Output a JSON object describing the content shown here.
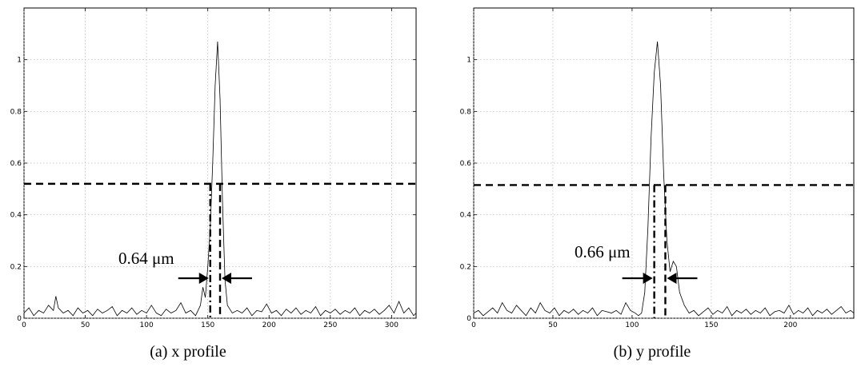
{
  "chart_data": [
    {
      "type": "line",
      "caption": "(a) x profile",
      "xlim": [
        0,
        320
      ],
      "ylim": [
        0,
        1.2
      ],
      "xticks": [
        0,
        50,
        100,
        150,
        200,
        250,
        300
      ],
      "yticks": [
        0,
        0.2,
        0.4,
        0.6,
        0.8,
        1
      ],
      "grid": true,
      "half_max_level": 0.52,
      "fwhm_x": [
        152,
        160
      ],
      "annotation": "0.64 μm",
      "series": [
        {
          "x": [
            0,
            4,
            8,
            12,
            16,
            20,
            24,
            26,
            28,
            32,
            36,
            40,
            44,
            48,
            52,
            56,
            60,
            64,
            68,
            72,
            76,
            80,
            84,
            88,
            92,
            96,
            100,
            104,
            108,
            112,
            116,
            120,
            124,
            128,
            132,
            136,
            140,
            144,
            146,
            148,
            150,
            152,
            154,
            156,
            158,
            160,
            162,
            164,
            166,
            170,
            174,
            178,
            182,
            186,
            190,
            194,
            198,
            202,
            206,
            210,
            214,
            218,
            222,
            226,
            230,
            234,
            238,
            242,
            246,
            250,
            254,
            258,
            262,
            266,
            270,
            274,
            278,
            282,
            286,
            290,
            294,
            298,
            302,
            306,
            310,
            314,
            318,
            320
          ],
          "y": [
            0.02,
            0.04,
            0.01,
            0.03,
            0.02,
            0.05,
            0.03,
            0.085,
            0.04,
            0.02,
            0.03,
            0.01,
            0.04,
            0.02,
            0.03,
            0.01,
            0.035,
            0.02,
            0.03,
            0.045,
            0.01,
            0.03,
            0.02,
            0.04,
            0.015,
            0.03,
            0.02,
            0.05,
            0.02,
            0.01,
            0.035,
            0.02,
            0.03,
            0.06,
            0.02,
            0.03,
            0.01,
            0.05,
            0.12,
            0.08,
            0.2,
            0.35,
            0.6,
            0.9,
            1.07,
            0.85,
            0.45,
            0.15,
            0.05,
            0.02,
            0.03,
            0.02,
            0.04,
            0.01,
            0.03,
            0.025,
            0.055,
            0.02,
            0.03,
            0.01,
            0.035,
            0.02,
            0.04,
            0.015,
            0.03,
            0.02,
            0.045,
            0.01,
            0.03,
            0.02,
            0.035,
            0.015,
            0.03,
            0.02,
            0.04,
            0.01,
            0.03,
            0.02,
            0.035,
            0.015,
            0.03,
            0.05,
            0.02,
            0.065,
            0.02,
            0.04,
            0.01,
            0.02
          ]
        }
      ]
    },
    {
      "type": "line",
      "caption": "(b) y profile",
      "xlim": [
        0,
        240
      ],
      "ylim": [
        0,
        1.2
      ],
      "xticks": [
        0,
        50,
        100,
        150,
        200
      ],
      "yticks": [
        0,
        0.2,
        0.4,
        0.6,
        0.8,
        1
      ],
      "grid": true,
      "half_max_level": 0.515,
      "fwhm_x": [
        114,
        121
      ],
      "annotation": "0.66 μm",
      "series": [
        {
          "x": [
            0,
            3,
            6,
            9,
            12,
            15,
            18,
            21,
            24,
            27,
            30,
            33,
            36,
            39,
            42,
            45,
            48,
            51,
            54,
            57,
            60,
            63,
            66,
            69,
            72,
            75,
            78,
            81,
            84,
            87,
            90,
            93,
            96,
            99,
            102,
            104,
            106,
            108,
            110,
            112,
            114,
            116,
            118,
            120,
            122,
            124,
            126,
            128,
            130,
            133,
            136,
            139,
            142,
            145,
            148,
            151,
            154,
            157,
            160,
            163,
            166,
            169,
            172,
            175,
            178,
            181,
            184,
            187,
            190,
            193,
            196,
            199,
            202,
            205,
            208,
            211,
            214,
            217,
            220,
            223,
            226,
            229,
            232,
            235,
            238,
            240
          ],
          "y": [
            0.02,
            0.03,
            0.01,
            0.025,
            0.04,
            0.02,
            0.06,
            0.03,
            0.02,
            0.05,
            0.03,
            0.01,
            0.04,
            0.02,
            0.06,
            0.03,
            0.02,
            0.04,
            0.01,
            0.03,
            0.02,
            0.035,
            0.015,
            0.03,
            0.02,
            0.04,
            0.01,
            0.03,
            0.025,
            0.02,
            0.03,
            0.015,
            0.06,
            0.03,
            0.02,
            0.01,
            0.02,
            0.1,
            0.35,
            0.7,
            0.95,
            1.07,
            0.9,
            0.55,
            0.3,
            0.18,
            0.22,
            0.2,
            0.1,
            0.05,
            0.02,
            0.03,
            0.01,
            0.025,
            0.04,
            0.015,
            0.03,
            0.02,
            0.045,
            0.01,
            0.03,
            0.02,
            0.035,
            0.015,
            0.03,
            0.02,
            0.04,
            0.01,
            0.025,
            0.03,
            0.02,
            0.05,
            0.015,
            0.03,
            0.02,
            0.04,
            0.01,
            0.03,
            0.02,
            0.035,
            0.015,
            0.03,
            0.045,
            0.02,
            0.03,
            0.02
          ]
        }
      ]
    }
  ]
}
